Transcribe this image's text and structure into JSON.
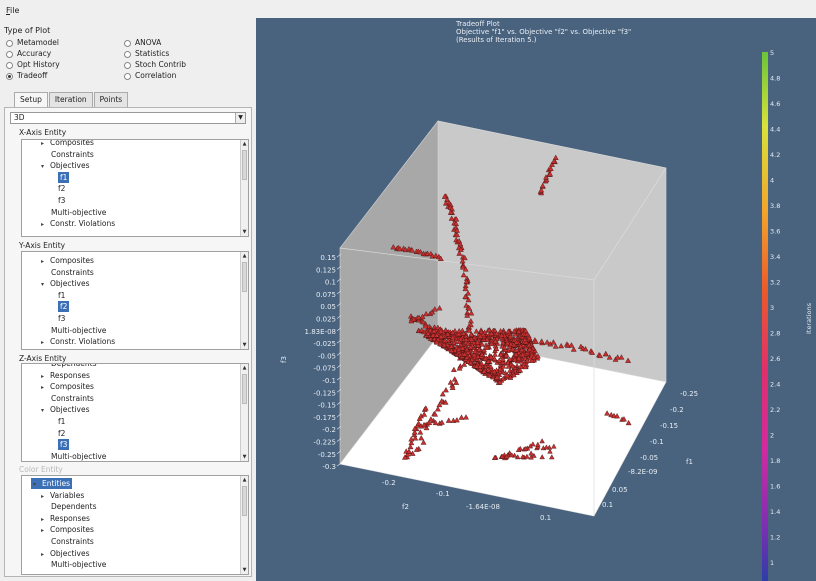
{
  "menu": {
    "file_label": "ile",
    "file_mnemonic": "F"
  },
  "type_of_plot": {
    "label": "Type of Plot",
    "options": [
      {
        "label": "Metamodel",
        "checked": false
      },
      {
        "label": "ANOVA",
        "checked": false
      },
      {
        "label": "Accuracy",
        "checked": false
      },
      {
        "label": "Statistics",
        "checked": false
      },
      {
        "label": "Opt History",
        "checked": false
      },
      {
        "label": "Stoch Contrib",
        "checked": false
      },
      {
        "label": "Tradeoff",
        "checked": true
      },
      {
        "label": "Correlation",
        "checked": false
      }
    ]
  },
  "tabs": [
    "Setup",
    "Iteration",
    "Points"
  ],
  "dimension_select": "3D",
  "x_axis": {
    "label": "X-Axis Entity",
    "rows": [
      {
        "text": "Composites",
        "caret": "▸"
      },
      {
        "text": "Constraints",
        "caret": ""
      },
      {
        "text": "Objectives",
        "caret": "▾"
      },
      {
        "text": "f1",
        "caret": "",
        "selected": true
      },
      {
        "text": "f2",
        "caret": ""
      },
      {
        "text": "f3",
        "caret": ""
      },
      {
        "text": "Multi-objective",
        "caret": ""
      },
      {
        "text": "Constr. Violations",
        "caret": "▸"
      }
    ]
  },
  "y_axis": {
    "label": "Y-Axis Entity",
    "rows": [
      {
        "text": "Composites",
        "caret": "▸"
      },
      {
        "text": "Constraints",
        "caret": ""
      },
      {
        "text": "Objectives",
        "caret": "▾"
      },
      {
        "text": "f1",
        "caret": ""
      },
      {
        "text": "f2",
        "caret": "",
        "selected": true
      },
      {
        "text": "f3",
        "caret": ""
      },
      {
        "text": "Multi-objective",
        "caret": ""
      },
      {
        "text": "Constr. Violations",
        "caret": "▸"
      }
    ]
  },
  "z_axis": {
    "label": "Z-Axis Entity",
    "rows": [
      {
        "text": "Dependents",
        "caret": ""
      },
      {
        "text": "Responses",
        "caret": "▸"
      },
      {
        "text": "Composites",
        "caret": "▸"
      },
      {
        "text": "Constraints",
        "caret": ""
      },
      {
        "text": "Objectives",
        "caret": "▾"
      },
      {
        "text": "f1",
        "caret": ""
      },
      {
        "text": "f2",
        "caret": ""
      },
      {
        "text": "f3",
        "caret": "",
        "selected": true
      },
      {
        "text": "Multi-objective",
        "caret": ""
      }
    ]
  },
  "color_entity": {
    "label": "Color Entity",
    "rows": [
      {
        "text": "Entities",
        "caret": "▾",
        "selected": true
      },
      {
        "text": "Variables",
        "caret": "▸"
      },
      {
        "text": "Dependents",
        "caret": ""
      },
      {
        "text": "Responses",
        "caret": "▸"
      },
      {
        "text": "Composites",
        "caret": "▸"
      },
      {
        "text": "Constraints",
        "caret": ""
      },
      {
        "text": "Objectives",
        "caret": "▸"
      },
      {
        "text": "Multi-objective",
        "caret": ""
      }
    ]
  },
  "plot": {
    "title": "Tradeoff Plot",
    "subtitle": "Objective \"f1\" vs. Objective \"f2\" vs. Objective \"f3\"",
    "note": "(Results of Iteration 5.)",
    "background": "#49637f",
    "marker_color": "#c83030"
  },
  "chart_data": {
    "type": "scatter",
    "title": "Tradeoff Plot",
    "subtitle": "Objective \"f1\" vs. Objective \"f2\" vs. Objective \"f3\"",
    "x_axis": {
      "label": "f1",
      "ticks": [
        "-0.25",
        "-0.2",
        "-0.15",
        "-0.1",
        "-0.05",
        "-8.2E-09",
        "0.05",
        "0.1"
      ]
    },
    "y_axis": {
      "label": "f2",
      "ticks": [
        "-0.2",
        "-0.1",
        "-1.64E-08",
        "0.1"
      ]
    },
    "z_axis": {
      "label": "f3",
      "ticks": [
        "0.15",
        "0.125",
        "0.1",
        "0.075",
        "0.05",
        "0.025",
        "1.83E-08",
        "-0.025",
        "-0.05",
        "-0.075",
        "-0.1",
        "-0.125",
        "-0.15",
        "-0.175",
        "-0.2",
        "-0.225",
        "-0.25",
        "-0.3"
      ]
    },
    "colorbar": {
      "label": "Iterations",
      "range": [
        1,
        5
      ],
      "ticks": [
        "5",
        "4.8",
        "4.6",
        "4.4",
        "4.2",
        "4",
        "3.8",
        "3.6",
        "3.4",
        "3.2",
        "3",
        "2.8",
        "2.6",
        "2.4",
        "2.2",
        "2",
        "1.8",
        "1.6",
        "1.4",
        "1.2",
        "1"
      ]
    }
  }
}
